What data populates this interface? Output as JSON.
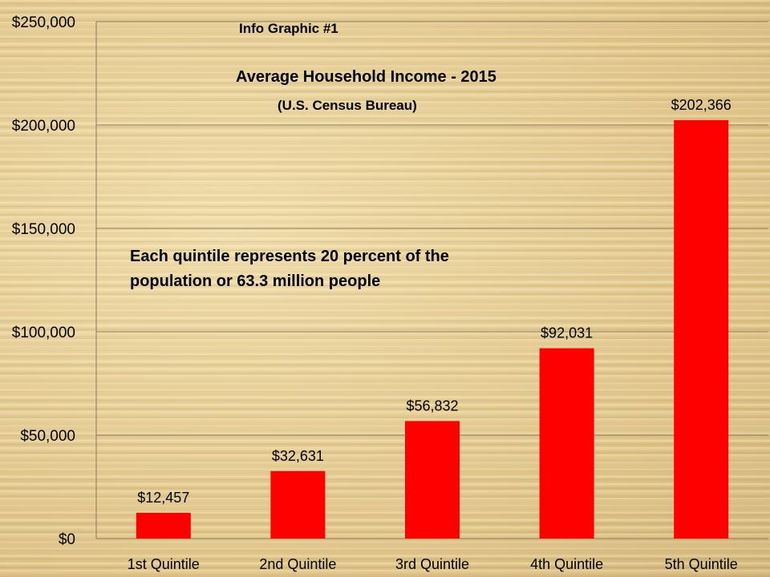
{
  "info_label": "Info Graphic #1",
  "annotation": {
    "line1": "Each quintile represents 20 percent of the",
    "line2": "population or 63.3 million people"
  },
  "colors": {
    "bar": "#ff0000",
    "background": "#e6cf96"
  },
  "chart_data": {
    "type": "bar",
    "title": "Average Household Income - 2015",
    "subtitle": "(U.S. Census Bureau)",
    "xlabel": "",
    "ylabel": "",
    "categories": [
      "1st Quintile",
      "2nd Quintile",
      "3rd Quintile",
      "4th Quintile",
      "5th Quintile"
    ],
    "values": [
      12457,
      32631,
      56832,
      92031,
      202366
    ],
    "data_labels": [
      "$12,457",
      "$32,631",
      "$56,832",
      "$92,031",
      "$202,366"
    ],
    "ylim": [
      0,
      250000
    ],
    "yticks": [
      0,
      50000,
      100000,
      150000,
      200000,
      250000
    ],
    "ytick_labels": [
      "$0",
      "$50,000",
      "$100,000",
      "$150,000",
      "$200,000",
      "$250,000"
    ],
    "grid": true,
    "legend": "none"
  }
}
